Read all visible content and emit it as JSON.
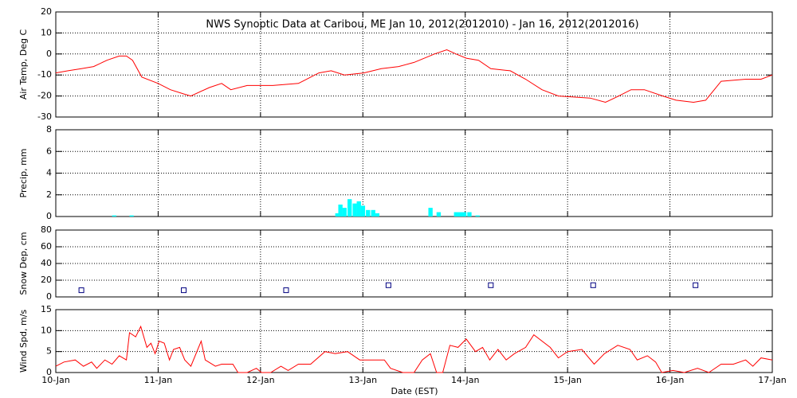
{
  "chart_data": [
    {
      "type": "line",
      "title": "NWS Synoptic Data at Caribou, ME   Jan 10, 2012(2012010) - Jan 16, 2012(2012016)",
      "ylabel": "Air Temp, Deg C",
      "color": "#ff0000",
      "x": [
        0,
        0.12,
        0.25,
        0.37,
        0.5,
        0.62,
        0.69,
        0.75,
        0.84,
        1.0,
        1.12,
        1.25,
        1.32,
        1.5,
        1.62,
        1.71,
        1.87,
        1.99,
        2.12,
        2.37,
        2.57,
        2.69,
        2.82,
        3.01,
        3.18,
        3.35,
        3.5,
        3.7,
        3.82,
        3.91,
        4.01,
        4.13,
        4.25,
        4.44,
        4.59,
        4.75,
        4.91,
        5.22,
        5.37,
        5.5,
        5.62,
        5.75,
        5.93,
        6.06,
        6.23,
        6.35,
        6.5,
        6.74,
        6.89,
        7.0
      ],
      "values": [
        -9,
        -8,
        -7,
        -6,
        -3,
        -1,
        -1,
        -3,
        -11,
        -14,
        -17,
        -19,
        -20,
        -16,
        -14,
        -17,
        -15,
        -15,
        -15,
        -14,
        -9,
        -8,
        -10,
        -9,
        -7,
        -6,
        -4,
        0,
        2,
        0,
        -2,
        -3,
        -7,
        -8,
        -12,
        -17,
        -20,
        -21,
        -23,
        -20,
        -17,
        -17,
        -20,
        -22,
        -23,
        -22,
        -13,
        -12,
        -12,
        -10
      ],
      "xlim": [
        0,
        7
      ],
      "ylim": [
        -30,
        20
      ],
      "yticks": [
        -30,
        -20,
        -10,
        0,
        10,
        20
      ],
      "grid": true
    },
    {
      "type": "bar",
      "ylabel": "Precip, mm",
      "color": "#00ffff",
      "x": [
        0.55,
        0.72,
        2.73,
        2.76,
        2.8,
        2.85,
        2.9,
        2.94,
        2.98,
        3.03,
        3.08,
        3.12,
        3.64,
        3.72,
        3.89,
        3.93,
        3.97,
        4.02,
        4.1
      ],
      "values": [
        0.1,
        0.1,
        0.3,
        1.1,
        0.8,
        1.6,
        1.2,
        1.4,
        1.0,
        0.6,
        0.6,
        0.3,
        0.8,
        0.4,
        0.4,
        0.4,
        0.4,
        0.4,
        0.1
      ],
      "xlim": [
        0,
        7
      ],
      "ylim": [
        0,
        8
      ],
      "yticks": [
        0,
        2,
        4,
        6,
        8
      ],
      "grid": true
    },
    {
      "type": "scatter",
      "ylabel": "Snow Dep, cm",
      "color": "#000080",
      "x": [
        0.25,
        1.25,
        2.25,
        3.25,
        4.25,
        5.25,
        6.25
      ],
      "values": [
        8,
        8,
        8,
        14,
        14,
        14,
        14
      ],
      "xlim": [
        0,
        7
      ],
      "ylim": [
        0,
        80
      ],
      "yticks": [
        0,
        20,
        40,
        60,
        80
      ],
      "grid": true
    },
    {
      "type": "line",
      "ylabel": "Wind Spd, m/s",
      "xlabel": "Date (EST)",
      "color": "#ff0000",
      "x": [
        0,
        0.08,
        0.19,
        0.27,
        0.35,
        0.4,
        0.48,
        0.55,
        0.62,
        0.69,
        0.72,
        0.78,
        0.83,
        0.89,
        0.93,
        0.97,
        1.01,
        1.06,
        1.11,
        1.15,
        1.21,
        1.26,
        1.32,
        1.42,
        1.46,
        1.56,
        1.62,
        1.73,
        1.78,
        1.87,
        1.96,
        2.01,
        2.1,
        2.2,
        2.27,
        2.37,
        2.49,
        2.63,
        2.73,
        2.85,
        2.97,
        3.11,
        3.21,
        3.27,
        3.39,
        3.5,
        3.58,
        3.66,
        3.72,
        3.78,
        3.85,
        3.93,
        4.01,
        4.1,
        4.17,
        4.24,
        4.32,
        4.4,
        4.48,
        4.59,
        4.67,
        4.83,
        4.91,
        5.0,
        5.14,
        5.26,
        5.36,
        5.49,
        5.61,
        5.68,
        5.78,
        5.86,
        5.92,
        6.03,
        6.14,
        6.27,
        6.38,
        6.5,
        6.62,
        6.74,
        6.81,
        6.89,
        7.0
      ],
      "values": [
        1.5,
        2.5,
        3,
        1.5,
        2.5,
        1,
        3,
        2,
        4,
        3,
        9.5,
        8.5,
        11,
        6,
        7,
        4.5,
        7.5,
        7,
        3,
        5.5,
        6,
        3,
        1.5,
        7.5,
        3,
        1.5,
        2,
        2,
        0,
        0,
        1,
        0,
        0,
        1.5,
        0.5,
        2,
        2,
        5,
        4.5,
        5,
        3,
        3,
        3,
        1,
        0,
        0,
        3,
        4.5,
        0,
        0,
        6.5,
        6,
        8,
        5,
        6,
        3,
        5.5,
        3,
        4.5,
        6,
        9,
        6,
        3.5,
        5,
        5.5,
        2,
        4.5,
        6.5,
        5.5,
        3,
        4,
        2.5,
        0,
        0.5,
        0,
        1,
        0,
        2,
        2,
        3,
        1.5,
        3.5,
        3
      ],
      "xlim": [
        0,
        7
      ],
      "ylim": [
        0,
        15
      ],
      "yticks": [
        0,
        5,
        10,
        15
      ],
      "grid": true,
      "xticks": [
        {
          "value": 0,
          "label": "10-Jan"
        },
        {
          "value": 1,
          "label": "11-Jan"
        },
        {
          "value": 2,
          "label": "12-Jan"
        },
        {
          "value": 3,
          "label": "13-Jan"
        },
        {
          "value": 4,
          "label": "14-Jan"
        },
        {
          "value": 5,
          "label": "15-Jan"
        },
        {
          "value": 6,
          "label": "16-Jan"
        },
        {
          "value": 7,
          "label": "17-Jan"
        }
      ]
    }
  ]
}
